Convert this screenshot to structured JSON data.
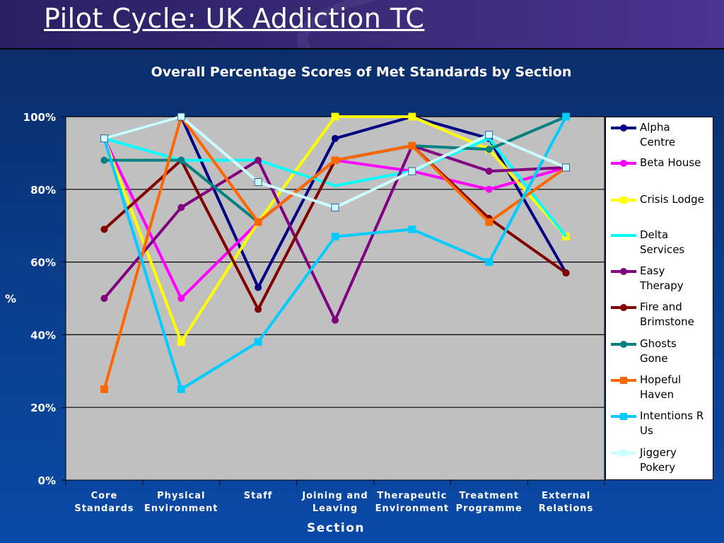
{
  "slide": {
    "title": "Pilot Cycle: UK Addiction TC"
  },
  "chart_data": {
    "type": "line",
    "title": "Overall Percentage Scores of Met Standards by Section",
    "xlabel": "Section",
    "ylabel": "%",
    "ylim": [
      0,
      100
    ],
    "yticks": [
      "0%",
      "20%",
      "40%",
      "60%",
      "80%",
      "100%"
    ],
    "grid": true,
    "legend_position": "right",
    "categories": [
      [
        "Core",
        "Standards"
      ],
      [
        "Physical",
        "Environment"
      ],
      [
        "Staff"
      ],
      [
        "Joining and",
        "Leaving"
      ],
      [
        "Therapeutic",
        "Environment"
      ],
      [
        "Treatment",
        "Programme"
      ],
      [
        "External",
        "Relations"
      ]
    ],
    "series": [
      {
        "name": "Alpha Centre",
        "label_lines": [
          "Alpha",
          "Centre"
        ],
        "color": "#000080",
        "marker": "circle",
        "values": [
          94,
          100,
          53,
          94,
          100,
          94,
          57
        ]
      },
      {
        "name": "Beta House",
        "label_lines": [
          "Beta House"
        ],
        "color": "#ff00ff",
        "marker": "circle",
        "values": [
          94,
          50,
          71,
          88,
          85,
          80,
          86
        ]
      },
      {
        "name": "Crisis Lodge",
        "label_lines": [
          "Crisis Lodge"
        ],
        "color": "#ffff00",
        "marker": "square",
        "values": [
          94,
          38,
          71,
          100,
          100,
          91,
          67
        ]
      },
      {
        "name": "Delta Services",
        "label_lines": [
          "Delta",
          "Services"
        ],
        "color": "#00ffff",
        "marker": "none",
        "values": [
          94,
          88,
          88,
          81,
          85,
          94,
          67
        ]
      },
      {
        "name": "Easy Therapy",
        "label_lines": [
          "Easy",
          "Therapy"
        ],
        "color": "#800080",
        "marker": "circle",
        "values": [
          50,
          75,
          88,
          44,
          92,
          85,
          86
        ]
      },
      {
        "name": "Fire and Brimstone",
        "label_lines": [
          "Fire and",
          "Brimstone"
        ],
        "color": "#800000",
        "marker": "circle",
        "values": [
          69,
          88,
          47,
          88,
          92,
          72,
          57
        ]
      },
      {
        "name": "Ghosts Gone",
        "label_lines": [
          "Ghosts",
          "Gone"
        ],
        "color": "#008080",
        "marker": "circle",
        "values": [
          88,
          88,
          71,
          88,
          92,
          91,
          100
        ]
      },
      {
        "name": "Hopeful Haven",
        "label_lines": [
          "Hopeful",
          "Haven"
        ],
        "color": "#ff6600",
        "marker": "square",
        "values": [
          25,
          100,
          71,
          88,
          92,
          71,
          86
        ]
      },
      {
        "name": "Intentions R Us",
        "label_lines": [
          "Intentions R",
          "Us"
        ],
        "color": "#00ccff",
        "marker": "square",
        "values": [
          94,
          25,
          38,
          67,
          69,
          60,
          100
        ]
      },
      {
        "name": "Jiggery Pokery",
        "label_lines": [
          "Jiggery",
          "Pokery"
        ],
        "color": "#ccffff",
        "marker": "square",
        "values": [
          94,
          100,
          82,
          75,
          85,
          95,
          86
        ]
      }
    ]
  }
}
